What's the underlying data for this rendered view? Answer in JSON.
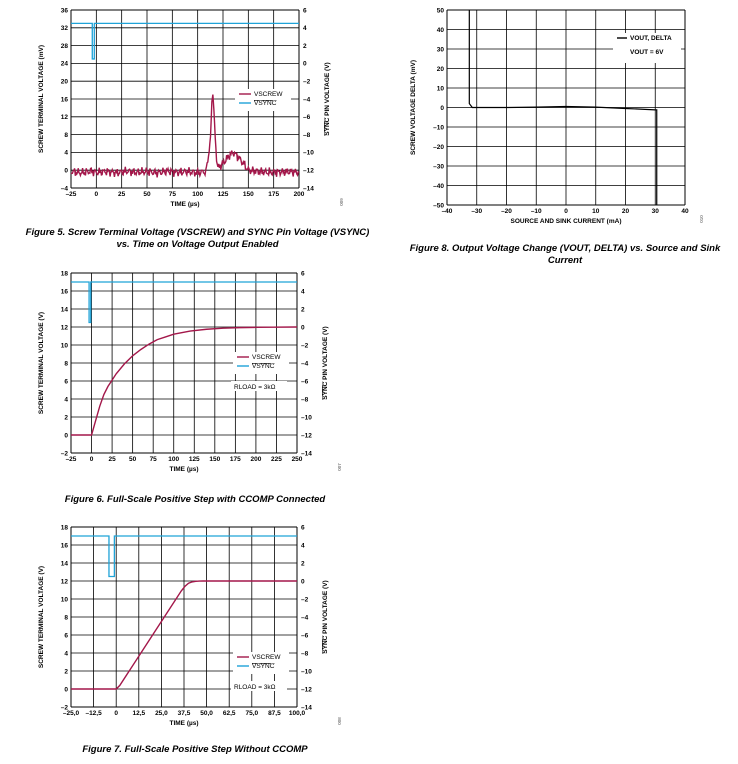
{
  "colors": {
    "screw": "#a3174a",
    "sync": "#1fa3d8",
    "vout": "#000000",
    "grid": "#000000"
  },
  "figures": {
    "fig5": {
      "caption": "Figure 5. Screw Terminal Voltage (VSCREW) and SYNC Pin Voltage (VSYNC) vs. Time on Voltage Output Enabled",
      "number": "009"
    },
    "fig6": {
      "caption": "Figure 6. Full-Scale Positive Step with CCOMP Connected",
      "number": "007"
    },
    "fig7": {
      "caption": "Figure 7. Full-Scale Positive Step Without CCOMP",
      "number": "008"
    },
    "fig8": {
      "caption": "Figure 8. Output Voltage Change (VOUT, DELTA) vs. Source and Sink Current",
      "number": "010"
    }
  },
  "chart_data": [
    {
      "id": "fig5",
      "type": "line",
      "xlabel": "TIME (µs)",
      "ylabel": "SCREW TERMINAL VOLTAGE (mV)",
      "y2label": "SYNC PIN VOLTAGE (V)",
      "xlim": [
        -25,
        200
      ],
      "ylim": [
        -4,
        36
      ],
      "y2lim": [
        -14,
        6
      ],
      "xticks": [
        "–25",
        "0",
        "25",
        "50",
        "75",
        "100",
        "125",
        "150",
        "175",
        "200"
      ],
      "yticks": [
        "36",
        "32",
        "28",
        "24",
        "20",
        "16",
        "12",
        "8",
        "4",
        "0",
        "–4"
      ],
      "y2ticks": [
        "6",
        "4",
        "2",
        "0",
        "–2",
        "–4",
        "–6",
        "–8",
        "–10",
        "–12",
        "–14"
      ],
      "legend": [
        "VSCREW",
        "VSYNC"
      ],
      "series": [
        {
          "name": "VSCREW",
          "axis": "left",
          "x": [
            -25,
            -15,
            -5,
            0,
            10,
            20,
            30,
            40,
            50,
            60,
            70,
            80,
            90,
            100,
            108,
            112,
            114,
            115,
            116,
            118,
            120,
            125,
            130,
            135,
            140,
            145,
            150,
            160,
            170,
            180,
            190,
            200
          ],
          "y": [
            -0.3,
            -0.6,
            -0.2,
            -0.5,
            -0.3,
            -0.6,
            -0.2,
            -0.5,
            -0.3,
            -0.6,
            -0.2,
            -0.5,
            -0.3,
            -0.6,
            -0.3,
            5,
            15,
            18,
            14,
            4,
            0.5,
            1.5,
            3,
            4,
            3,
            1.5,
            0,
            -0.3,
            -0.5,
            -0.4,
            -0.3,
            -0.5
          ]
        },
        {
          "name": "VSYNC",
          "axis": "right",
          "x": [
            -25,
            -4,
            -4,
            -2,
            -2,
            200
          ],
          "y": [
            4.5,
            4.5,
            0.5,
            0.5,
            4.5,
            4.5
          ]
        }
      ]
    },
    {
      "id": "fig6",
      "type": "line",
      "xlabel": "TIME (µs)",
      "ylabel": "SCREW TERMINAL VOLTAGE (V)",
      "y2label": "SYNC PIN VOLTAGE (V)",
      "xlim": [
        -25,
        250
      ],
      "ylim": [
        -2,
        18
      ],
      "y2lim": [
        -14,
        6
      ],
      "xticks": [
        "–25",
        "0",
        "25",
        "50",
        "75",
        "100",
        "125",
        "150",
        "175",
        "200",
        "225",
        "250"
      ],
      "yticks": [
        "18",
        "16",
        "14",
        "12",
        "10",
        "8",
        "6",
        "4",
        "2",
        "0",
        "–2"
      ],
      "y2ticks": [
        "6",
        "4",
        "2",
        "0",
        "–2",
        "–4",
        "–6",
        "–8",
        "–10",
        "–12",
        "–14"
      ],
      "legend": [
        "VSCREW",
        "VSYNC"
      ],
      "annotation": "RLOAD = 3kΩ",
      "series": [
        {
          "name": "VSCREW",
          "axis": "left",
          "x": [
            -25,
            0,
            5,
            10,
            15,
            20,
            30,
            40,
            50,
            60,
            70,
            80,
            90,
            100,
            120,
            140,
            160,
            180,
            200,
            220,
            250
          ],
          "y": [
            0,
            0,
            1.6,
            3.2,
            4.5,
            5.4,
            6.8,
            7.9,
            8.8,
            9.5,
            10.1,
            10.6,
            10.9,
            11.2,
            11.55,
            11.75,
            11.87,
            11.93,
            11.96,
            11.98,
            12
          ]
        },
        {
          "name": "VSYNC",
          "axis": "right",
          "x": [
            -25,
            -3,
            -3,
            -1,
            -1,
            250
          ],
          "y": [
            5,
            5,
            0.5,
            0.5,
            5,
            5
          ]
        }
      ]
    },
    {
      "id": "fig7",
      "type": "line",
      "xlabel": "TIME (µs)",
      "ylabel": "SCREW TERMINAL VOLTAGE (V)",
      "y2label": "SYNC PIN VOLTAGE (V)",
      "xlim": [
        -25,
        100
      ],
      "ylim": [
        -2,
        18
      ],
      "y2lim": [
        -14,
        6
      ],
      "xticks": [
        "–25,0",
        "–12,5",
        "0",
        "12,5",
        "25,0",
        "37,5",
        "50,0",
        "62,5",
        "75,0",
        "87,5",
        "100,0"
      ],
      "yticks": [
        "18",
        "16",
        "14",
        "12",
        "10",
        "8",
        "6",
        "4",
        "2",
        "0",
        "–2"
      ],
      "y2ticks": [
        "6",
        "4",
        "2",
        "0",
        "–2",
        "–4",
        "–6",
        "–8",
        "–10",
        "–12",
        "–14"
      ],
      "legend": [
        "VSCREW",
        "VSYNC"
      ],
      "annotation": "RLOAD = 3kΩ",
      "series": [
        {
          "name": "VSCREW",
          "axis": "left",
          "x": [
            -25,
            0,
            2,
            36,
            38,
            40,
            42,
            44,
            46,
            48,
            50,
            100
          ],
          "y": [
            0,
            0,
            0.4,
            10.9,
            11.4,
            11.75,
            11.9,
            11.96,
            11.99,
            12,
            12,
            12
          ]
        },
        {
          "name": "VSYNC",
          "axis": "right",
          "x": [
            -25,
            -4,
            -4,
            -1,
            -1,
            100
          ],
          "y": [
            5,
            5,
            0.5,
            0.5,
            5,
            5
          ]
        }
      ]
    },
    {
      "id": "fig8",
      "type": "line",
      "xlabel": "SOURCE AND SINK CURRENT (mA)",
      "ylabel": "SCREW VOLTAGE DELTA (mV)",
      "xlim": [
        -40,
        40
      ],
      "ylim": [
        -50,
        50
      ],
      "xticks": [
        "–40",
        "–30",
        "–20",
        "–10",
        "0",
        "10",
        "20",
        "30",
        "40"
      ],
      "yticks": [
        "50",
        "40",
        "30",
        "20",
        "10",
        "0",
        "–10",
        "–20",
        "–30",
        "–40",
        "–50"
      ],
      "legend": [
        "VOUT, DELTA"
      ],
      "annotation": "VOUT = 6V",
      "series": [
        {
          "name": "VOUT, DELTA",
          "axis": "left",
          "x": [
            -32.5,
            -32.5,
            -31.5,
            -20,
            -10,
            0,
            10,
            20,
            30,
            30.5,
            30.5
          ],
          "y": [
            50,
            2,
            0,
            0,
            0.2,
            0.5,
            0.2,
            -0.5,
            -1.2,
            -1.2,
            -50
          ]
        }
      ]
    }
  ]
}
